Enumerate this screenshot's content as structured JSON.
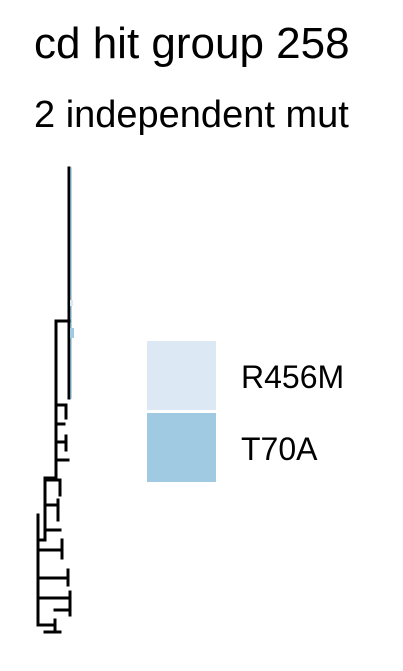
{
  "chart_data": {
    "type": "tree",
    "title": "cd hit group 258",
    "subtitle": "2 independent mut",
    "legend": {
      "placement": "right",
      "entries": [
        {
          "label": "R456M",
          "color": "#dde8f5"
        },
        {
          "label": "T70A",
          "color": "#9fcae1"
        }
      ]
    },
    "tip_colors": {
      "R456M": "#dde8f5",
      "T70A": "#9fcae1"
    },
    "grid": false
  }
}
